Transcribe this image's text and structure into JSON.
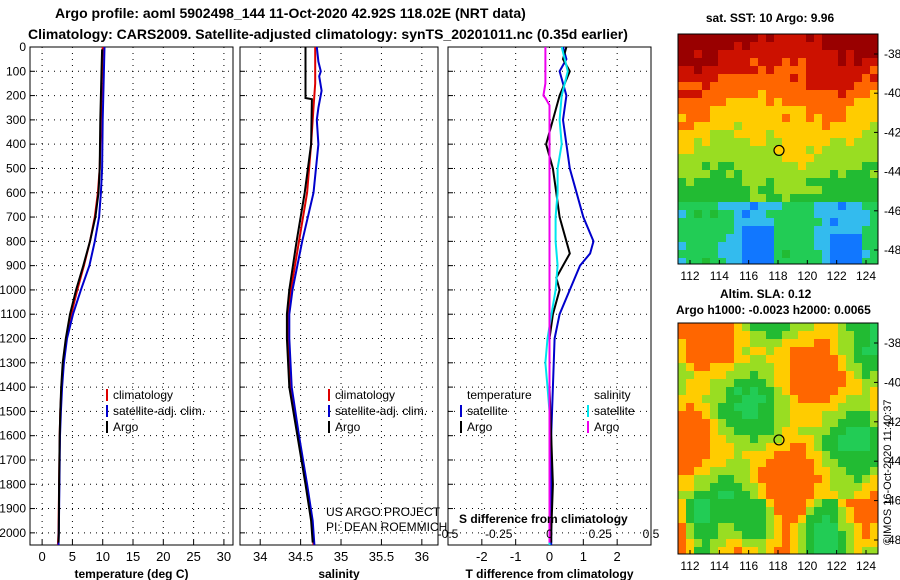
{
  "header": {
    "line1": "Argo profile: aoml 5902498_144 11-Oct-2020 42.92S 118.02E (NRT data)",
    "line2": "Climatology: CARS2009. Satellite-adjusted climatology: synTS_20201011.nc (0.35d earlier)"
  },
  "footer": {
    "project": "US ARGO PROJECT",
    "pi": "PI: DEAN ROEMMICH",
    "imos_stamp": "©IMOS 16-Oct-2020 11:40:37"
  },
  "colors": {
    "climatology": "#dd0000",
    "satellite": "#0000cc",
    "argo": "#000000",
    "sat_temp": "#00e5ee",
    "argo_sal": "#ee00ee"
  },
  "chart_data": [
    {
      "id": "temperature",
      "type": "line",
      "title": "",
      "xlabel": "temperature (deg C)",
      "ylabel": "",
      "xlim": [
        -2,
        31.5
      ],
      "ylim": [
        2050,
        0
      ],
      "xticks": [
        0,
        5,
        10,
        15,
        20,
        25,
        30
      ],
      "yticks": [
        0,
        100,
        200,
        300,
        400,
        500,
        600,
        700,
        800,
        900,
        1000,
        1100,
        1200,
        1300,
        1400,
        1500,
        1600,
        1700,
        1800,
        1900,
        2000
      ],
      "grid": true,
      "legend": [
        "climatology",
        "satellite-adj. clim.",
        "Argo"
      ],
      "series": [
        {
          "name": "climatology",
          "color": "#dd0000",
          "points": [
            [
              10.0,
              0
            ],
            [
              9.9,
              100
            ],
            [
              9.7,
              300
            ],
            [
              9.5,
              500
            ],
            [
              9.2,
              600
            ],
            [
              8.7,
              700
            ],
            [
              7.9,
              800
            ],
            [
              6.9,
              900
            ],
            [
              5.8,
              1000
            ],
            [
              4.8,
              1100
            ],
            [
              4.0,
              1200
            ],
            [
              3.5,
              1300
            ],
            [
              3.2,
              1400
            ],
            [
              3.0,
              1500
            ],
            [
              2.9,
              1600
            ],
            [
              2.8,
              1800
            ],
            [
              2.7,
              2000
            ],
            [
              2.6,
              2050
            ]
          ]
        },
        {
          "name": "satellite-adj. clim.",
          "color": "#0000cc",
          "points": [
            [
              10.3,
              0
            ],
            [
              10.2,
              100
            ],
            [
              10.0,
              300
            ],
            [
              9.9,
              500
            ],
            [
              9.7,
              600
            ],
            [
              9.4,
              700
            ],
            [
              8.7,
              800
            ],
            [
              7.8,
              900
            ],
            [
              6.4,
              1000
            ],
            [
              5.1,
              1100
            ],
            [
              4.1,
              1200
            ],
            [
              3.6,
              1300
            ],
            [
              3.3,
              1400
            ],
            [
              3.1,
              1500
            ],
            [
              2.95,
              1600
            ],
            [
              2.85,
              1800
            ],
            [
              2.75,
              2000
            ],
            [
              2.7,
              2050
            ]
          ]
        },
        {
          "name": "Argo",
          "color": "#000000",
          "points": [
            [
              9.9,
              10
            ],
            [
              9.8,
              100
            ],
            [
              9.6,
              300
            ],
            [
              9.5,
              500
            ],
            [
              9.3,
              600
            ],
            [
              8.8,
              700
            ],
            [
              7.9,
              800
            ],
            [
              6.8,
              900
            ],
            [
              5.6,
              1000
            ],
            [
              4.6,
              1100
            ],
            [
              3.9,
              1200
            ],
            [
              3.4,
              1300
            ],
            [
              3.15,
              1400
            ],
            [
              3.0,
              1500
            ],
            [
              2.9,
              1600
            ],
            [
              2.8,
              1800
            ],
            [
              2.75,
              2000
            ],
            [
              2.7,
              2040
            ]
          ]
        }
      ]
    },
    {
      "id": "salinity",
      "type": "line",
      "title": "",
      "xlabel": "salinity",
      "ylabel": "",
      "xlim": [
        33.75,
        36.2
      ],
      "ylim": [
        2050,
        0
      ],
      "xticks": [
        34,
        34.5,
        35,
        35.5,
        36
      ],
      "xtick_labels": [
        "34",
        "34.5",
        "35",
        "35.5",
        "36"
      ],
      "grid": true,
      "legend": [
        "climatology",
        "satellite-adj. clim.",
        "Argo"
      ],
      "series": [
        {
          "name": "climatology",
          "color": "#dd0000",
          "points": [
            [
              34.68,
              0
            ],
            [
              34.68,
              150
            ],
            [
              34.66,
              250
            ],
            [
              34.63,
              400
            ],
            [
              34.58,
              600
            ],
            [
              34.48,
              800
            ],
            [
              34.38,
              1000
            ],
            [
              34.34,
              1100
            ],
            [
              34.34,
              1200
            ],
            [
              34.38,
              1400
            ],
            [
              34.47,
              1600
            ],
            [
              34.57,
              1800
            ],
            [
              34.64,
              1950
            ],
            [
              34.66,
              2050
            ]
          ]
        },
        {
          "name": "satellite-adj. clim.",
          "color": "#0000cc",
          "points": [
            [
              34.7,
              0
            ],
            [
              34.72,
              60
            ],
            [
              34.75,
              100
            ],
            [
              34.73,
              120
            ],
            [
              34.76,
              180
            ],
            [
              34.72,
              250
            ],
            [
              34.7,
              300
            ],
            [
              34.72,
              400
            ],
            [
              34.66,
              600
            ],
            [
              34.52,
              800
            ],
            [
              34.4,
              1000
            ],
            [
              34.36,
              1100
            ],
            [
              34.36,
              1200
            ],
            [
              34.39,
              1400
            ],
            [
              34.48,
              1600
            ],
            [
              34.58,
              1800
            ],
            [
              34.65,
              1950
            ],
            [
              34.67,
              2050
            ]
          ]
        },
        {
          "name": "Argo",
          "color": "#000000",
          "points": [
            [
              34.56,
              0
            ],
            [
              34.56,
              210
            ],
            [
              34.64,
              215
            ],
            [
              34.63,
              400
            ],
            [
              34.55,
              600
            ],
            [
              34.45,
              800
            ],
            [
              34.36,
              1000
            ],
            [
              34.33,
              1100
            ],
            [
              34.33,
              1200
            ],
            [
              34.36,
              1400
            ],
            [
              34.46,
              1600
            ],
            [
              34.56,
              1800
            ],
            [
              34.63,
              1950
            ],
            [
              34.65,
              2040
            ]
          ]
        }
      ]
    },
    {
      "id": "difference",
      "type": "line",
      "title": "",
      "xlabel": "T difference from climatology",
      "top_xlabel": "S difference from climatology",
      "xlim": [
        -3,
        3
      ],
      "ylim": [
        2050,
        0
      ],
      "xticks": [
        -2,
        -1,
        0,
        1,
        2
      ],
      "top_xticks": [
        -0.5,
        -0.25,
        0,
        0.25,
        0.5
      ],
      "top_xtick_labels": [
        "-0.5",
        "-0.25",
        "0",
        "0.25",
        "0.5"
      ],
      "grid": true,
      "legend_left_title": "temperature",
      "legend_right_title": "salinity",
      "legend_left": [
        "satellite",
        "Argo"
      ],
      "legend_right": [
        "satellite",
        "Argo"
      ],
      "series": [
        {
          "name": "temperature satellite",
          "color": "#0000cc",
          "points": [
            [
              0.4,
              0
            ],
            [
              0.5,
              50
            ],
            [
              0.3,
              100
            ],
            [
              0.5,
              200
            ],
            [
              0.4,
              300
            ],
            [
              0.5,
              400
            ],
            [
              0.6,
              500
            ],
            [
              0.8,
              600
            ],
            [
              1.0,
              700
            ],
            [
              1.3,
              800
            ],
            [
              1.2,
              850
            ],
            [
              0.9,
              900
            ],
            [
              0.6,
              1000
            ],
            [
              0.3,
              1100
            ],
            [
              0.15,
              1200
            ],
            [
              0.1,
              1400
            ],
            [
              0.05,
              1600
            ],
            [
              0.05,
              1800
            ],
            [
              0.05,
              2000
            ],
            [
              0.05,
              2050
            ]
          ]
        },
        {
          "name": "temperature Argo",
          "color": "#000000",
          "points": [
            [
              0.5,
              0
            ],
            [
              0.4,
              50
            ],
            [
              0.6,
              100
            ],
            [
              0.3,
              200
            ],
            [
              0.1,
              300
            ],
            [
              -0.1,
              400
            ],
            [
              0.1,
              500
            ],
            [
              0.2,
              600
            ],
            [
              0.3,
              700
            ],
            [
              0.4,
              750
            ],
            [
              0.5,
              800
            ],
            [
              0.6,
              850
            ],
            [
              0.4,
              900
            ],
            [
              0.2,
              950
            ],
            [
              0.3,
              1000
            ],
            [
              0.1,
              1100
            ],
            [
              0.0,
              1200
            ],
            [
              0.0,
              1400
            ],
            [
              0.05,
              1600
            ],
            [
              0.1,
              1800
            ],
            [
              0.05,
              2000
            ],
            [
              0.05,
              2040
            ]
          ]
        },
        {
          "name": "salinity satellite",
          "color": "#00e5ee",
          "points": [
            [
              0.06,
              0
            ],
            [
              0.09,
              100
            ],
            [
              0.06,
              200
            ],
            [
              0.05,
              300
            ],
            [
              0.06,
              400
            ],
            [
              0.04,
              500
            ],
            [
              0.04,
              600
            ],
            [
              0.03,
              700
            ],
            [
              0.03,
              800
            ],
            [
              0.04,
              900
            ],
            [
              0.03,
              1000
            ],
            [
              0.01,
              1100
            ],
            [
              -0.01,
              1200
            ],
            [
              -0.02,
              1300
            ],
            [
              -0.01,
              1400
            ],
            [
              0.0,
              1500
            ],
            [
              0.0,
              1600
            ],
            [
              0.0,
              1800
            ],
            [
              0.0,
              2000
            ],
            [
              0.0,
              2050
            ]
          ]
        },
        {
          "name": "salinity Argo",
          "color": "#ee00ee",
          "points": [
            [
              -0.02,
              0
            ],
            [
              -0.02,
              150
            ],
            [
              -0.03,
              200
            ],
            [
              -0.02,
              210
            ],
            [
              0.0,
              240
            ],
            [
              0.0,
              2040
            ]
          ]
        }
      ]
    }
  ],
  "maps": [
    {
      "id": "sst",
      "title": "sat. SST: 10 Argo: 9.96",
      "xticks": [
        "112",
        "114",
        "116",
        "118",
        "120",
        "122",
        "124"
      ],
      "yticks": [
        "-38",
        "-40",
        "-42",
        "-44",
        "-46",
        "-48"
      ]
    },
    {
      "id": "sla",
      "title_line1": "Altim. SLA: 0.12",
      "title_line2": "Argo h1000: -0.0023 h2000: 0.0065",
      "xticks": [
        "112",
        "114",
        "116",
        "118",
        "120",
        "122",
        "124"
      ],
      "yticks": [
        "-38",
        "-40",
        "-42",
        "-44",
        "-46",
        "-48"
      ]
    }
  ]
}
